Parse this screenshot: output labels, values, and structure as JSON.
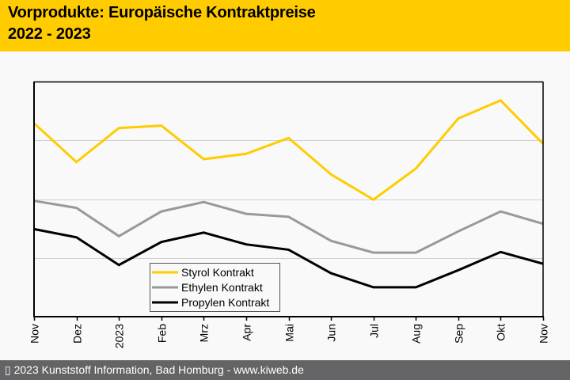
{
  "header": {
    "title_line1": "Vorprodukte: Europäische Kontraktpreise",
    "title_line2": "2022 - 2023",
    "background_color": "#ffcc00"
  },
  "footer": {
    "text": "▯ 2023 Kunststoff Information, Bad Homburg - www.kiweb.de",
    "background_color": "#646466"
  },
  "chart_data": {
    "type": "line",
    "title": "Vorprodukte: Europäische Kontraktpreise 2022 - 2023",
    "xlabel": "",
    "ylabel": "",
    "y_units": "relative (no y-axis tick labels shown; gridline units)",
    "ylim": [
      0,
      4
    ],
    "y_gridlines": [
      1,
      2,
      3
    ],
    "grid": true,
    "legend_position": "bottom-center-left",
    "categories": [
      "Nov",
      "Dez",
      "2023",
      "Feb",
      "Mrz",
      "Apr",
      "Mai",
      "Jun",
      "Jul",
      "Aug",
      "Sep",
      "Okt",
      "Nov"
    ],
    "series": [
      {
        "name": "Styrol Kontrakt",
        "color": "#ffcc00",
        "values": [
          3.29,
          2.63,
          3.21,
          3.25,
          2.68,
          2.77,
          3.04,
          2.42,
          1.99,
          2.52,
          3.37,
          3.68,
          2.94
        ]
      },
      {
        "name": "Ethylen Kontrakt",
        "color": "#999999",
        "values": [
          1.97,
          1.85,
          1.37,
          1.79,
          1.95,
          1.75,
          1.7,
          1.29,
          1.09,
          1.09,
          1.45,
          1.79,
          1.58
        ]
      },
      {
        "name": "Propylen Kontrakt",
        "color": "#000000",
        "values": [
          1.49,
          1.35,
          0.88,
          1.27,
          1.43,
          1.23,
          1.14,
          0.74,
          0.5,
          0.5,
          0.79,
          1.1,
          0.9
        ]
      }
    ]
  }
}
